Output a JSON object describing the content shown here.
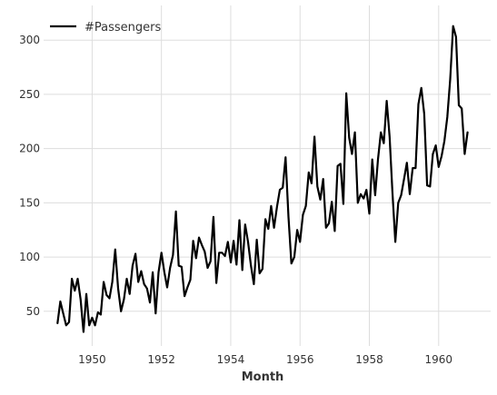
{
  "chart_data": {
    "type": "line",
    "title": "",
    "xlabel": "Month",
    "ylabel": "",
    "xlim": [
      1948.6,
      1961.5
    ],
    "ylim": [
      18,
      332
    ],
    "x_ticks": [
      1950,
      1952,
      1954,
      1956,
      1958,
      1960
    ],
    "y_ticks": [
      50,
      100,
      150,
      200,
      250,
      300
    ],
    "grid": true,
    "legend_position": "top-left",
    "series": [
      {
        "name": "#Passengers",
        "color": "#000000",
        "x_start": 1949.0,
        "x_step_months": 1,
        "values": [
          39,
          59,
          48,
          37,
          40,
          80,
          69,
          80,
          61,
          31,
          66,
          37,
          44,
          37,
          49,
          47,
          77,
          65,
          62,
          77,
          107,
          71,
          50,
          61,
          80,
          66,
          92,
          103,
          77,
          87,
          75,
          71,
          58,
          86,
          48,
          86,
          104,
          86,
          72,
          90,
          102,
          142,
          92,
          91,
          64,
          72,
          79,
          115,
          99,
          118,
          111,
          105,
          90,
          96,
          137,
          76,
          104,
          104,
          101,
          114,
          95,
          115,
          93,
          134,
          88,
          130,
          114,
          92,
          75,
          116,
          85,
          89,
          135,
          126,
          147,
          127,
          146,
          162,
          164,
          192,
          137,
          94,
          100,
          125,
          114,
          139,
          147,
          178,
          168,
          211,
          165,
          153,
          172,
          127,
          131,
          151,
          124,
          184,
          186,
          149,
          251,
          210,
          195,
          215,
          150,
          158,
          154,
          162,
          140,
          190,
          157,
          190,
          215,
          205,
          244,
          211,
          160,
          114,
          150,
          157,
          172,
          187,
          158,
          182,
          182,
          241,
          256,
          232,
          166,
          165,
          195,
          203,
          183,
          193,
          207,
          229,
          264,
          313,
          303,
          240,
          237,
          195,
          215
        ]
      }
    ]
  }
}
